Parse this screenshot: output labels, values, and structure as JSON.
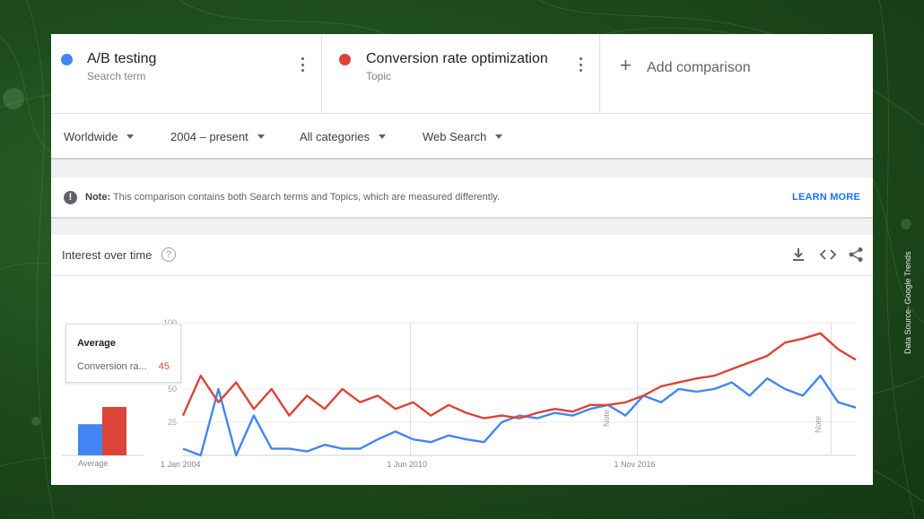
{
  "colors": {
    "term1": "#4285f4",
    "term2": "#db4437",
    "link": "#1a73e8"
  },
  "comparison": {
    "terms": [
      {
        "name": "A/B testing",
        "type": "Search term",
        "color": "#4285f4",
        "menu_icon": "more-vert-icon"
      },
      {
        "name": "Conversion rate optimization",
        "type": "Topic",
        "color": "#db4437",
        "menu_icon": "more-vert-icon"
      }
    ],
    "add_label": "Add comparison",
    "add_icon": "plus-icon"
  },
  "filters": {
    "region": "Worldwide",
    "time": "2004 – present",
    "category": "All categories",
    "property": "Web Search"
  },
  "note": {
    "label": "Note:",
    "text": " This comparison contains both Search terms and Topics, which are measured differently.",
    "link": "LEARN MORE",
    "icon": "info-icon"
  },
  "interest": {
    "title": "Interest over time",
    "help_icon": "help-icon",
    "toolbar_icons": [
      "download-icon",
      "embed-icon",
      "share-icon"
    ]
  },
  "tooltip": {
    "title": "Average",
    "series": "Conversion ra...",
    "value": "45"
  },
  "average_label": "Average",
  "annotation_label": "Note",
  "source_label": "Data Source- Google Trends",
  "chart_data": {
    "type": "line",
    "x_ticks": [
      "1 Jan 2004",
      "1 Jun 2010",
      "1 Nov 2016"
    ],
    "y_ticks": [
      25,
      50,
      100
    ],
    "ylim": [
      0,
      100
    ],
    "grid": true,
    "averages": [
      {
        "name": "A/B testing",
        "value": 29
      },
      {
        "name": "Conversion rate optimization",
        "value": 45
      }
    ],
    "x_years": [
      2004.0,
      2004.5,
      2005.0,
      2005.5,
      2006.0,
      2006.5,
      2007.0,
      2007.5,
      2008.0,
      2008.5,
      2009.0,
      2009.5,
      2010.0,
      2010.5,
      2011.0,
      2011.5,
      2012.0,
      2012.5,
      2013.0,
      2013.5,
      2014.0,
      2014.5,
      2015.0,
      2015.5,
      2016.0,
      2016.5,
      2017.0,
      2017.5,
      2018.0,
      2018.5,
      2019.0,
      2019.5,
      2020.0,
      2020.5,
      2021.0,
      2021.5,
      2022.0,
      2022.5,
      2023.0
    ],
    "series": [
      {
        "name": "A/B testing",
        "values": [
          5,
          0,
          50,
          0,
          30,
          5,
          5,
          3,
          8,
          5,
          5,
          12,
          18,
          12,
          10,
          15,
          12,
          10,
          25,
          30,
          28,
          32,
          30,
          35,
          38,
          30,
          45,
          40,
          50,
          48,
          50,
          55,
          45,
          58,
          50,
          45,
          60,
          40,
          36
        ]
      },
      {
        "name": "Conversion rate optimization",
        "values": [
          30,
          60,
          40,
          55,
          35,
          50,
          30,
          45,
          35,
          50,
          40,
          45,
          35,
          40,
          30,
          38,
          32,
          28,
          30,
          28,
          32,
          35,
          33,
          38,
          38,
          40,
          45,
          52,
          55,
          58,
          60,
          65,
          70,
          75,
          85,
          88,
          92,
          80,
          72
        ]
      }
    ]
  }
}
